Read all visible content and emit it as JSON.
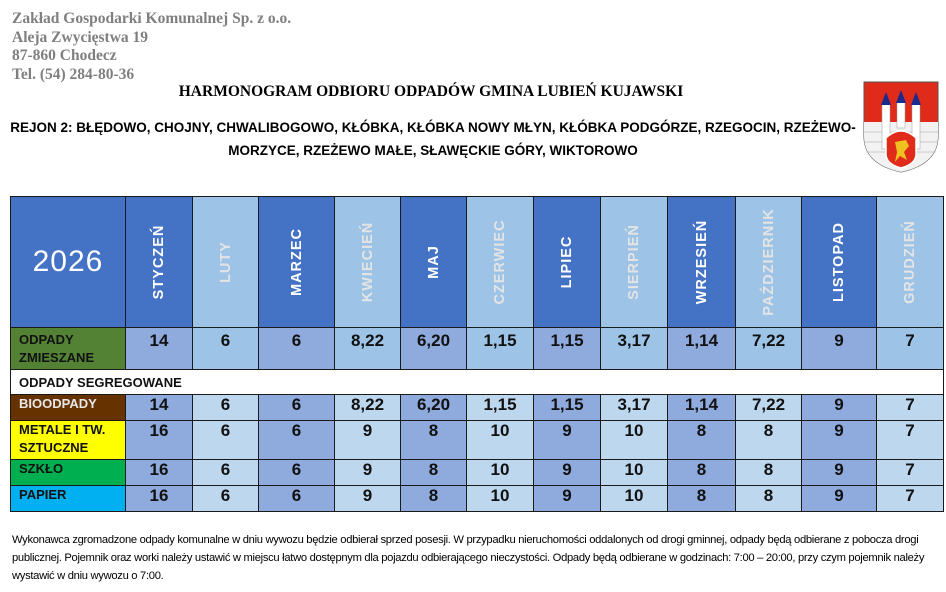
{
  "company": {
    "name": "Zakład Gospodarki Komunalnej Sp. z o.o.",
    "street": "Aleja Zwycięstwa 19",
    "city": "87-860 Chodecz",
    "phone": "Tel. (54) 284-80-36"
  },
  "title": "HARMONOGRAM ODBIORU ODPADÓW GMINA LUBIEŃ KUJAWSKI",
  "region_line1": "REJON 2: BŁĘDOWO, CHOJNY, CHWALIBOGOWO, KŁÓBKA, KŁÓBKA NOWY MŁYN, KŁÓBKA PODGÓRZE, RZEGOCIN, RZEŻEWO-",
  "region_line2": "MORZYCE, RZEŻEWO MAŁE, SŁAWĘCKIE GÓRY, WIKTOROWO",
  "coat_of_arms": "coat-of-arms-icon",
  "table": {
    "year": "2026",
    "months": [
      "STYCZEŃ",
      "LUTY",
      "MARZEC",
      "KWIECIEŃ",
      "MAJ",
      "CZERWIEC",
      "LIPIEC",
      "SIERPIEŃ",
      "WRZESIEŃ",
      "PAŹDZIERNIK",
      "LISTOPAD",
      "GRUDZIEŃ"
    ],
    "segregated_label": "ODPADY SEGREGOWANE",
    "rows": [
      {
        "label": "ODPADY ZMIESZANE",
        "color": "#548235",
        "values": [
          "14",
          "6",
          "6",
          "8,22",
          "6,20",
          "1,15",
          "1,15",
          "3,17",
          "1,14",
          "7,22",
          "9",
          "7"
        ]
      },
      {
        "label": "BIOODPADY",
        "color": "#663300",
        "values": [
          "14",
          "6",
          "6",
          "8,22",
          "6,20",
          "1,15",
          "1,15",
          "3,17",
          "1,14",
          "7,22",
          "9",
          "7"
        ]
      },
      {
        "label": "METALE I TW. SZTUCZNE",
        "color": "#ffff00",
        "values": [
          "16",
          "6",
          "6",
          "9",
          "8",
          "10",
          "9",
          "10",
          "8",
          "8",
          "9",
          "7"
        ]
      },
      {
        "label": "SZKŁO",
        "color": "#00b050",
        "values": [
          "16",
          "6",
          "6",
          "9",
          "8",
          "10",
          "9",
          "10",
          "8",
          "8",
          "9",
          "7"
        ]
      },
      {
        "label": "PAPIER",
        "color": "#00b0f0",
        "values": [
          "16",
          "6",
          "6",
          "9",
          "8",
          "10",
          "9",
          "10",
          "8",
          "8",
          "9",
          "7"
        ]
      }
    ],
    "colors": {
      "header_dark": "#4472c4",
      "header_light": "#9dc3e6",
      "cell_dark": "#8faadc",
      "cell_light": "#bdd7ee"
    }
  },
  "footer": "Wykonawca zgromadzone odpady komunalne w dniu wywozu będzie odbierał sprzed posesji. W przypadku nieruchomości oddalonych od drogi gminnej,  odpady będą odbierane z pobocza drogi publicznej. Pojemnik oraz worki należy ustawić w miejscu łatwo dostępnym dla pojazdu odbierającego nieczystości. Odpady będą odbierane w godzinach: 7:00 – 20:00, przy czym pojemnik należy wystawić w dniu wywozu o 7:00."
}
